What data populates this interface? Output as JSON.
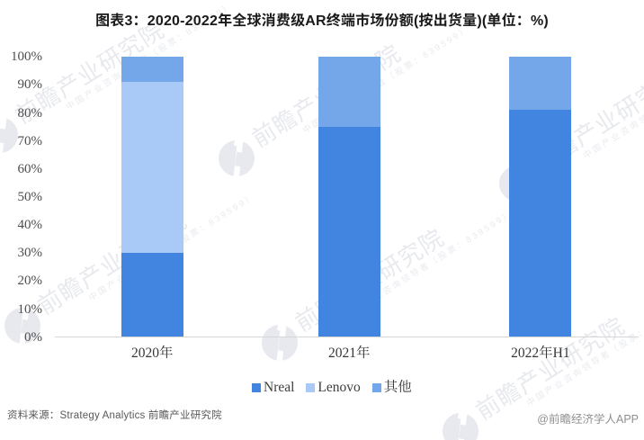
{
  "title": "图表3：2020-2022年全球消费级AR终端市场份额(按出货量)(单位：%)",
  "chart_data": {
    "type": "bar",
    "stacked": true,
    "categories": [
      "2020年",
      "2021年",
      "2022年H1"
    ],
    "series": [
      {
        "name": "Nreal",
        "color": "#4185e0",
        "values": [
          30,
          75,
          81
        ]
      },
      {
        "name": "Lenovo",
        "color": "#a9caf6",
        "values": [
          61,
          0,
          0
        ]
      },
      {
        "name": "其他",
        "color": "#74a6ea",
        "values": [
          9,
          25,
          19
        ]
      }
    ],
    "ylabel": "",
    "xlabel": "",
    "ylim": [
      0,
      100
    ],
    "ytick_step": 10,
    "ytick_suffix": "%",
    "grid": false,
    "legend_position": "bottom"
  },
  "footer": {
    "source": "资料来源：Strategy Analytics 前瞻产业研究院",
    "credit": "@前瞻经济学人APP"
  },
  "watermark": {
    "big_text": "前瞻产业研究院",
    "small_text": "中国产业咨询领导者（股票：839599）",
    "logo": "qianzhan-logo"
  }
}
